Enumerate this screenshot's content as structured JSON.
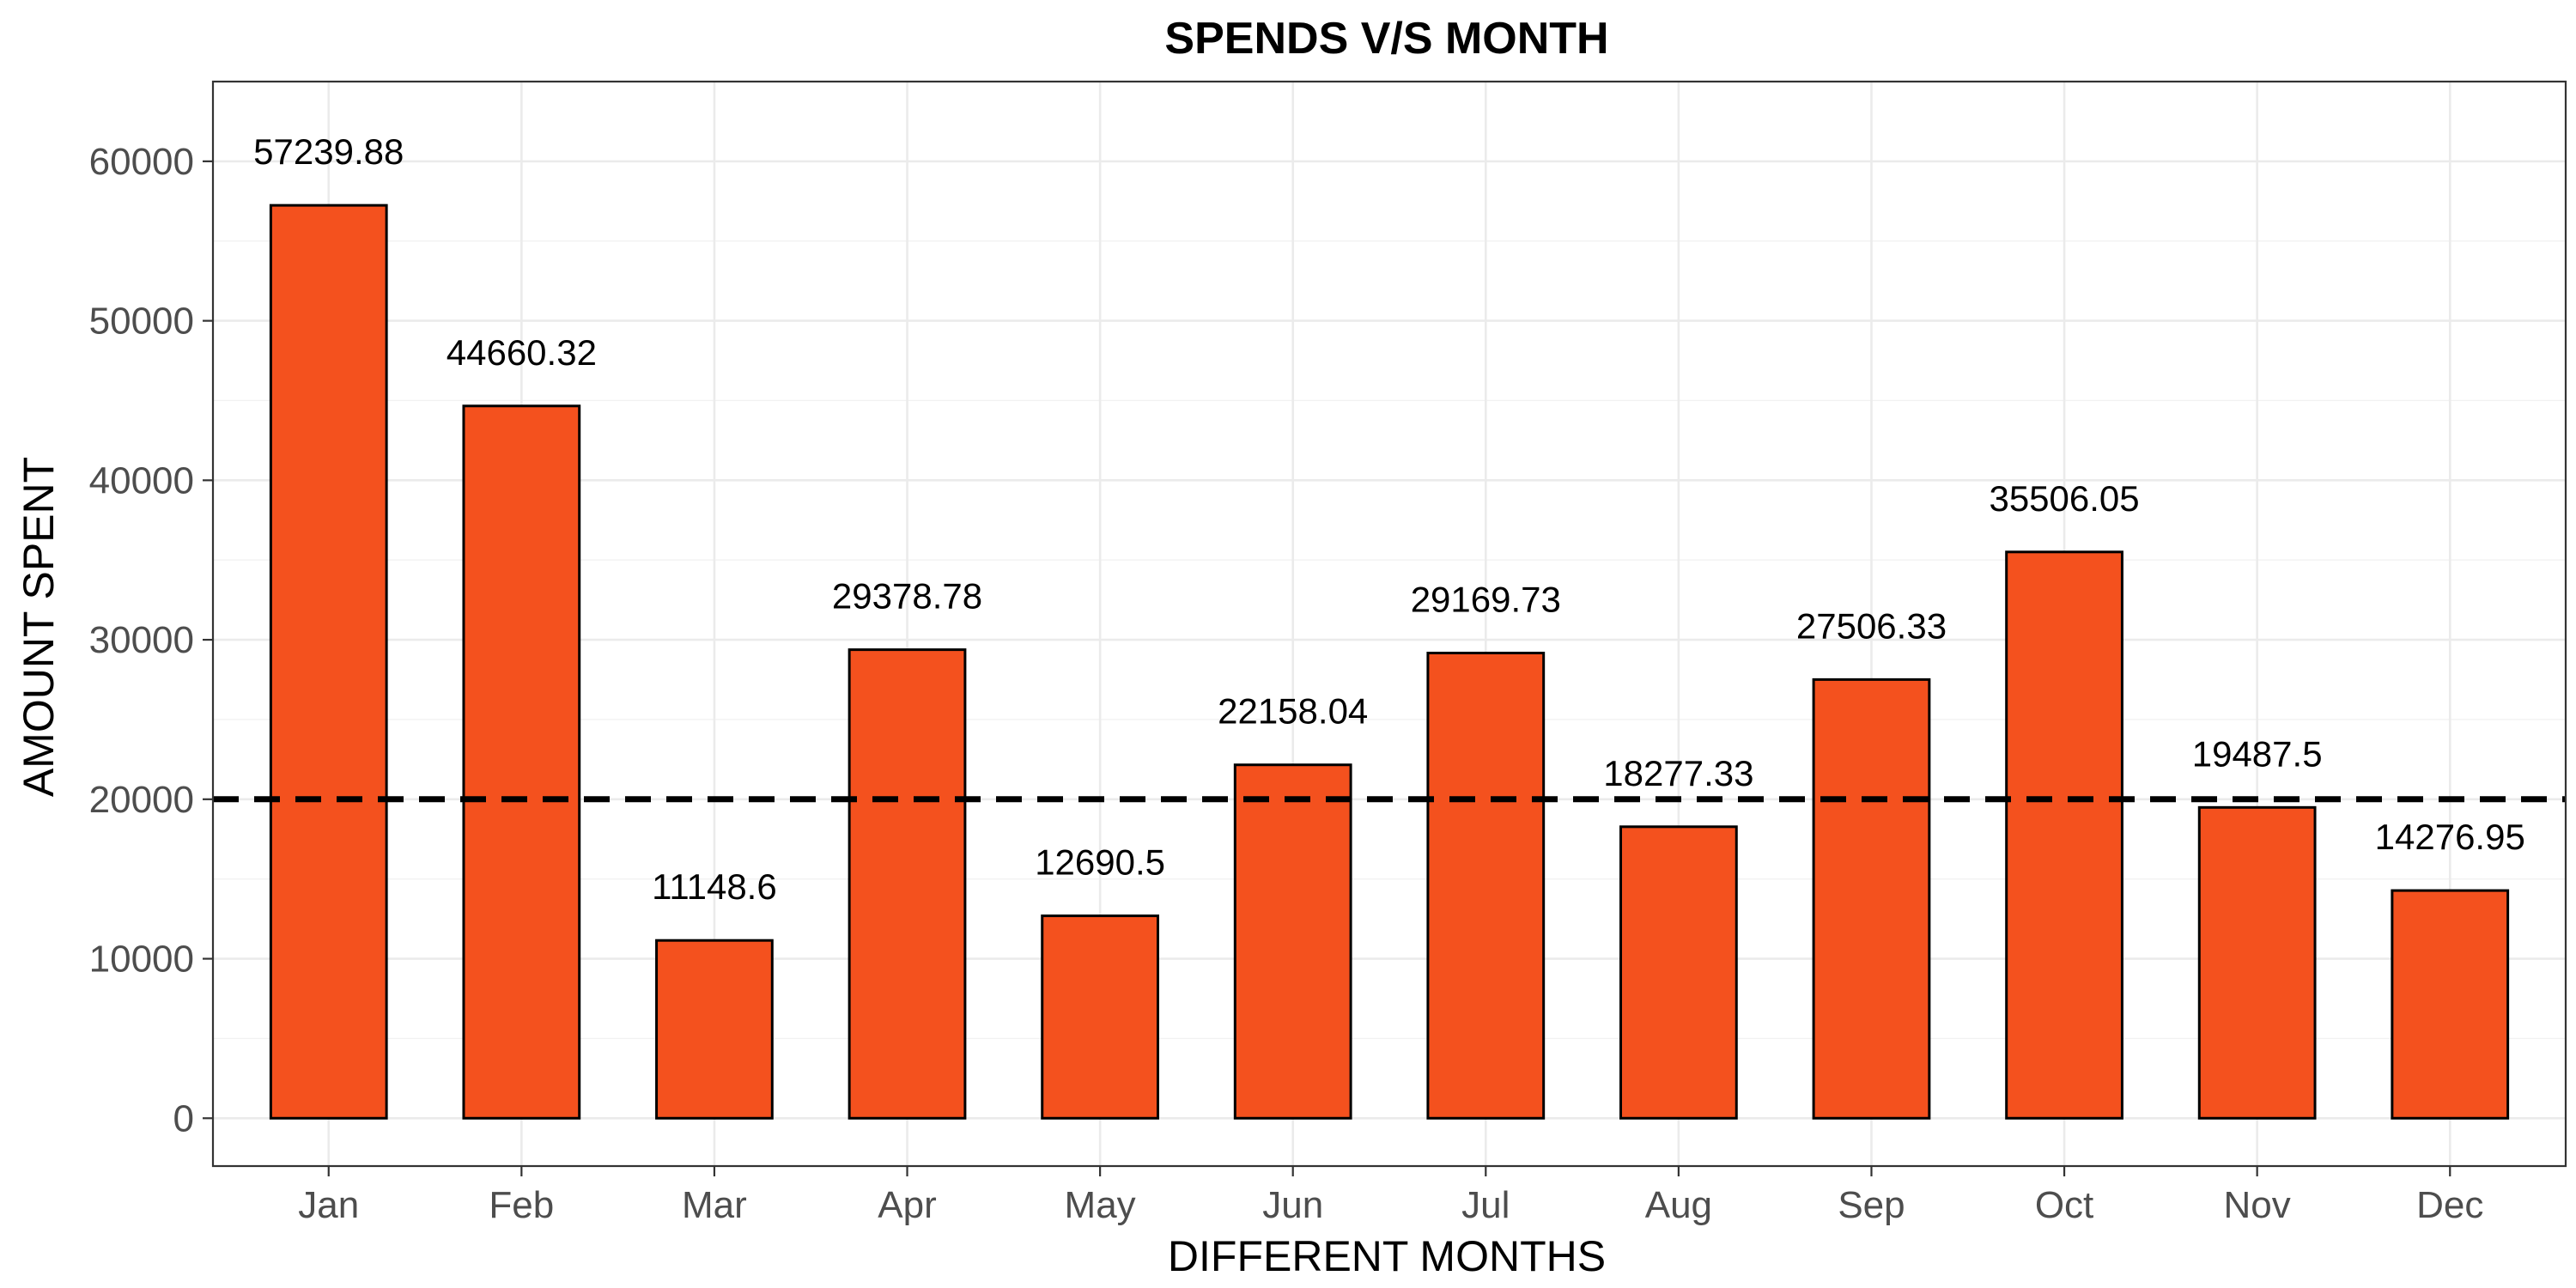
{
  "chart_data": {
    "type": "bar",
    "title": "SPENDS V/S MONTH",
    "xlabel": "DIFFERENT MONTHS",
    "ylabel": "AMOUNT SPENT",
    "categories": [
      "Jan",
      "Feb",
      "Mar",
      "Apr",
      "May",
      "Jun",
      "Jul",
      "Aug",
      "Sep",
      "Oct",
      "Nov",
      "Dec"
    ],
    "values": [
      57239.88,
      44660.32,
      11148.6,
      29378.78,
      12690.5,
      22158.04,
      29169.73,
      18277.33,
      27506.33,
      35506.05,
      19487.5,
      14276.95
    ],
    "data_labels": [
      "57239.88",
      "44660.32",
      "11148.6",
      "29378.78",
      "12690.5",
      "22158.04",
      "29169.73",
      "18277.33",
      "27506.33",
      "35506.05",
      "19487.5",
      "14276.95"
    ],
    "ylim": [
      -3000,
      65000
    ],
    "yticks": [
      0,
      10000,
      20000,
      30000,
      40000,
      50000,
      60000
    ],
    "reference_line": {
      "value": 20000,
      "style": "dashed"
    },
    "grid": true,
    "legend": "none",
    "colors": {
      "bar_fill": "#F4511E",
      "bar_outline": "#000000",
      "reference_line": "#000000"
    }
  }
}
